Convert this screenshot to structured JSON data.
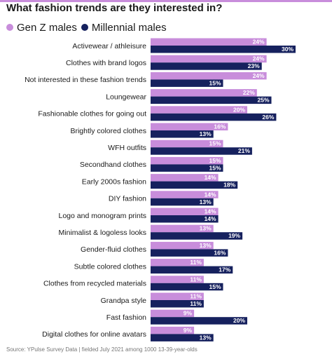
{
  "colors": {
    "gen_z": "#c88ddb",
    "millennial": "#16215e",
    "accent": "#c88ddb",
    "source_text": "#777777"
  },
  "title": "What fashion trends are they interested in?",
  "source": "Source: YPulse Survey Data | fielded July 2021 among 1000 13-39-year-olds",
  "chart_data": {
    "type": "bar",
    "orientation": "horizontal",
    "title": "What fashion trends are they interested in?",
    "categories": [
      "Activewear / athleisure",
      "Clothes with brand logos",
      "Not interested in these fashion trends",
      "Loungewear",
      "Fashionable clothes for going out",
      "Brightly colored clothes",
      "WFH outfits",
      "Secondhand clothes",
      "Early 2000s fashion",
      "DIY fashion",
      "Logo and monogram prints",
      "Minimalist & logoless looks",
      "Gender-fluid clothes",
      "Subtle colored clothes",
      "Clothes from recycled materials",
      "Grandpa style",
      "Fast fashion",
      "Digital clothes for online avatars"
    ],
    "series": [
      {
        "name": "Gen Z males",
        "color": "#c88ddb",
        "values": [
          24,
          24,
          24,
          22,
          20,
          16,
          15,
          15,
          14,
          14,
          14,
          13,
          13,
          11,
          11,
          11,
          9,
          9
        ]
      },
      {
        "name": "Millennial males",
        "color": "#16215e",
        "values": [
          30,
          23,
          15,
          25,
          26,
          13,
          21,
          15,
          18,
          13,
          14,
          19,
          16,
          17,
          15,
          11,
          20,
          13
        ]
      }
    ],
    "value_suffix": "%",
    "legend_position": "top-left",
    "grid": false,
    "xlim": [
      0,
      30
    ]
  }
}
